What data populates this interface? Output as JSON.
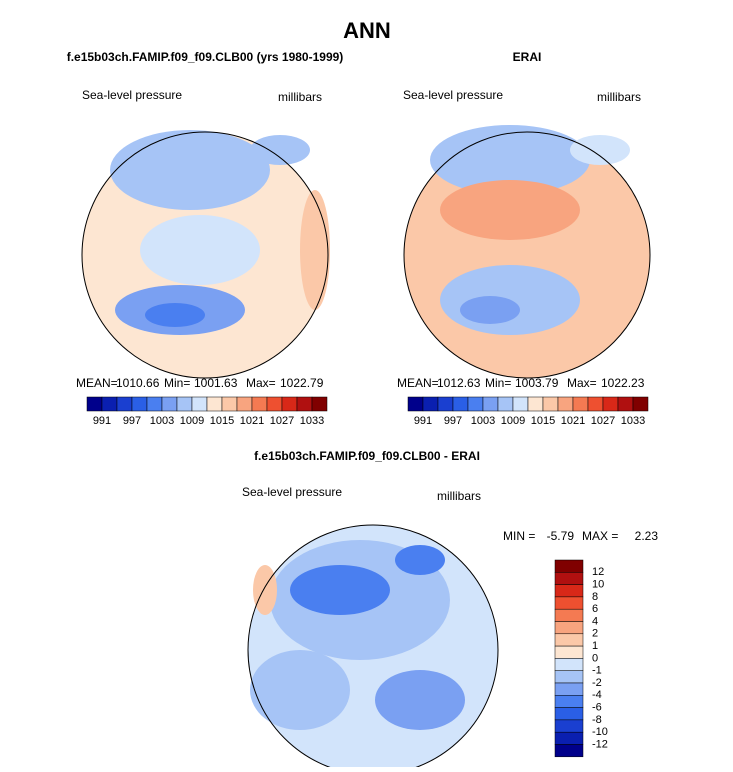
{
  "title": "ANN",
  "panels": [
    {
      "title": "f.e15b03ch.FAMIP.f09_f09.CLB00 (yrs 1980-1999)",
      "field": "Sea-level pressure",
      "units": "millibars",
      "mean_label": "MEAN=",
      "mean": 1010.66,
      "min_label": "Min=",
      "min": 1001.63,
      "max_label": "Max=",
      "max": 1022.79
    },
    {
      "title": "ERAI",
      "field": "Sea-level pressure",
      "units": "millibars",
      "mean_label": "MEAN=",
      "mean": 1012.63,
      "min_label": "Min=",
      "min": 1003.79,
      "max_label": "Max=",
      "max": 1022.23
    }
  ],
  "colorbar": {
    "colors": [
      "#00008b",
      "#0a1fb0",
      "#1a3fd0",
      "#2a5fe6",
      "#4a7ff0",
      "#7aa0f2",
      "#a6c4f6",
      "#d2e4fb",
      "#fde6d2",
      "#fbc8a8",
      "#f8a47f",
      "#f47a52",
      "#ee5030",
      "#d82818",
      "#b01010",
      "#800000"
    ],
    "labels": [
      991,
      997,
      1003,
      1009,
      1015,
      1021,
      1027,
      1033
    ]
  },
  "diff": {
    "title": "f.e15b03ch.FAMIP.f09_f09.CLB00 - ERAI",
    "field": "Sea-level pressure",
    "units": "millibars",
    "min_label": "MIN =",
    "min": -5.79,
    "max_label": "MAX =",
    "max": 2.23,
    "colorbar": {
      "colors": [
        "#800000",
        "#b01010",
        "#d82818",
        "#ee5030",
        "#f47a52",
        "#f8a47f",
        "#fbc8a8",
        "#fde6d2",
        "#d2e4fb",
        "#a6c4f6",
        "#7aa0f2",
        "#4a7ff0",
        "#2a5fe6",
        "#1a3fd0",
        "#0a1fb0",
        "#00008b"
      ],
      "labels": [
        12,
        10,
        8,
        6,
        4,
        2,
        1,
        0,
        -1,
        -2,
        -4,
        -6,
        -8,
        -10,
        -12
      ]
    }
  }
}
